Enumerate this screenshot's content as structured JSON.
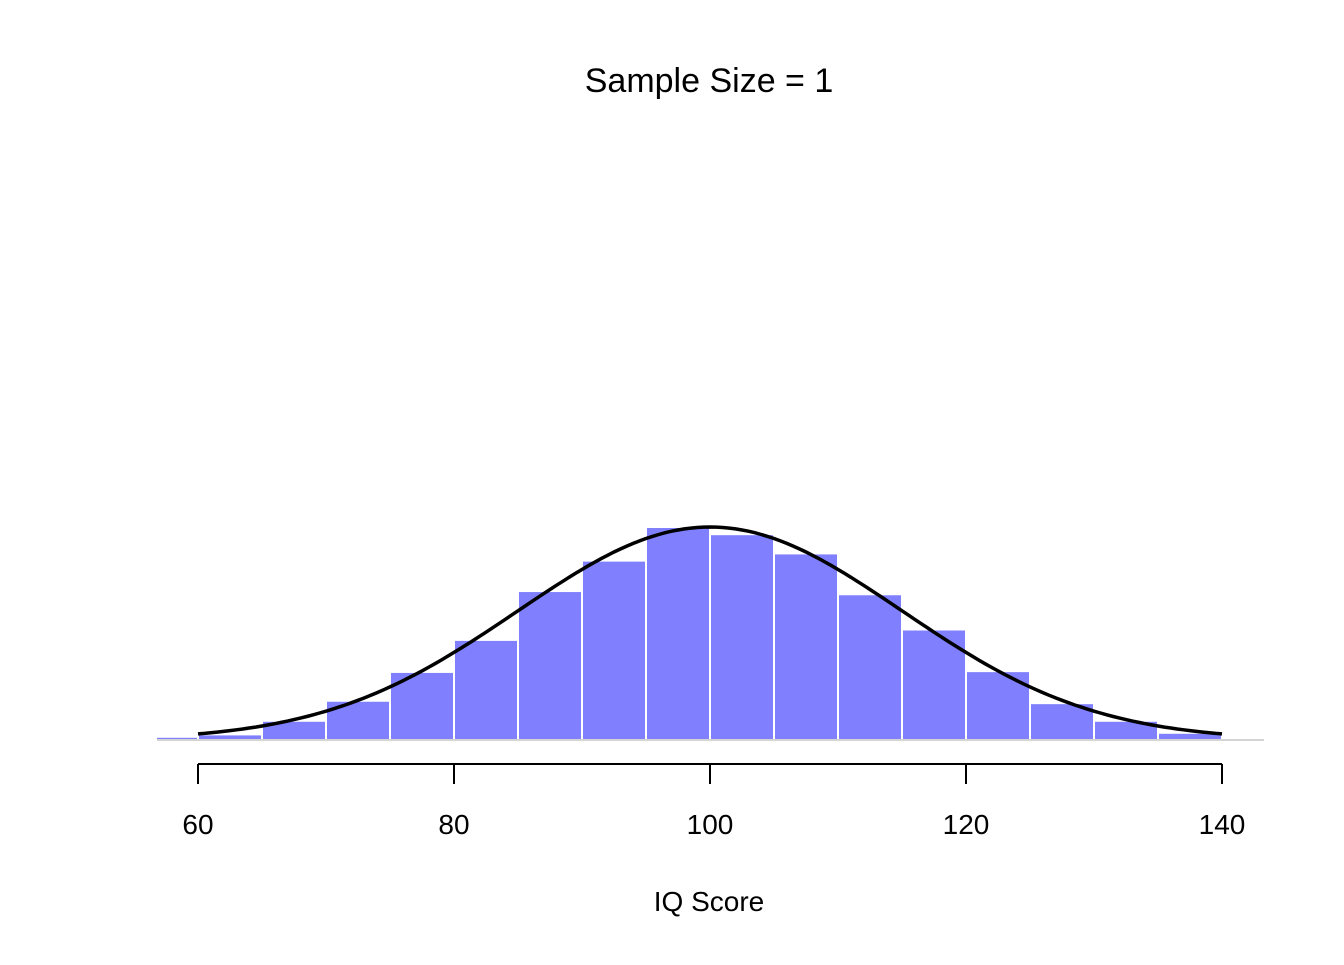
{
  "chart_data": {
    "type": "bar",
    "title": "Sample Size = 1",
    "xlabel": "IQ Score",
    "ylabel": "",
    "xlim": [
      56.8,
      143.3
    ],
    "ylim": [
      0,
      0.08
    ],
    "x_ticks": [
      60,
      80,
      100,
      120,
      140
    ],
    "y_axis_shown": false,
    "grid": false,
    "bar_color": "#8080FF",
    "bar_border_color": "#FFFFFF",
    "curve_color": "#000000",
    "bins": [
      {
        "from": 55,
        "to": 60,
        "density": 0.0004
      },
      {
        "from": 60,
        "to": 65,
        "density": 0.0007
      },
      {
        "from": 65,
        "to": 70,
        "density": 0.0024
      },
      {
        "from": 70,
        "to": 75,
        "density": 0.0049
      },
      {
        "from": 75,
        "to": 80,
        "density": 0.0085
      },
      {
        "from": 80,
        "to": 85,
        "density": 0.0125
      },
      {
        "from": 85,
        "to": 90,
        "density": 0.0186
      },
      {
        "from": 90,
        "to": 95,
        "density": 0.0224
      },
      {
        "from": 95,
        "to": 100,
        "density": 0.0266
      },
      {
        "from": 100,
        "to": 105,
        "density": 0.0257
      },
      {
        "from": 105,
        "to": 110,
        "density": 0.0233
      },
      {
        "from": 110,
        "to": 115,
        "density": 0.0182
      },
      {
        "from": 115,
        "to": 120,
        "density": 0.0138
      },
      {
        "from": 120,
        "to": 125,
        "density": 0.0086
      },
      {
        "from": 125,
        "to": 130,
        "density": 0.0046
      },
      {
        "from": 130,
        "to": 135,
        "density": 0.0024
      },
      {
        "from": 135,
        "to": 140,
        "density": 0.0009
      },
      {
        "from": 140,
        "to": 145,
        "density": 0.0001
      }
    ],
    "curve": {
      "type": "normal density",
      "mean": 100,
      "sd": 15,
      "from": 60,
      "to": 140
    }
  }
}
